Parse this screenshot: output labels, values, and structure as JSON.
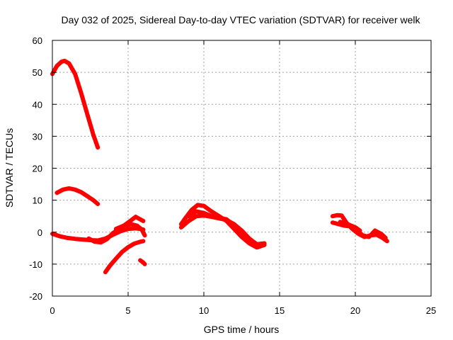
{
  "chart_data": {
    "type": "line",
    "title": "Day 032 of 2025, Sidereal Day-to-day VTEC variation (SDTVAR) for receiver welk",
    "xlabel": "GPS time / hours",
    "ylabel": "SDTVAR / TECUs",
    "xlim": [
      0,
      25
    ],
    "ylim": [
      -20,
      60
    ],
    "xticks": [
      0,
      5,
      10,
      15,
      20,
      25
    ],
    "yticks": [
      -20,
      -10,
      0,
      10,
      20,
      30,
      40,
      50,
      60
    ],
    "grid": true,
    "color": "#ff0000",
    "series": [
      {
        "name": "arc-high",
        "x": [
          0.0,
          0.3,
          0.6,
          0.8,
          1.1,
          1.5,
          1.9,
          2.3,
          2.7,
          3.0
        ],
        "y": [
          49.5,
          52.0,
          53.3,
          53.6,
          52.8,
          49.5,
          43.5,
          37.0,
          30.5,
          26.5
        ]
      },
      {
        "name": "arc-mid",
        "x": [
          0.3,
          0.7,
          1.1,
          1.5,
          1.9,
          2.3,
          2.7,
          3.0
        ],
        "y": [
          12.3,
          13.3,
          13.7,
          13.3,
          12.5,
          11.3,
          10.0,
          8.8
        ]
      },
      {
        "name": "arc-zero-a",
        "x": [
          0.0,
          0.5,
          1.0,
          1.5,
          2.0,
          2.5,
          3.0,
          3.5,
          4.0,
          4.5,
          5.0,
          5.5,
          6.0
        ],
        "y": [
          -0.5,
          -1.3,
          -1.8,
          -2.1,
          -2.3,
          -2.5,
          -2.6,
          -2.0,
          -0.8,
          0.3,
          1.0,
          1.2,
          0.8
        ]
      },
      {
        "name": "arc-zero-b",
        "x": [
          2.4,
          2.8,
          3.2,
          3.6,
          4.0,
          4.5,
          5.0,
          5.5,
          6.0
        ],
        "y": [
          -2.0,
          -3.0,
          -3.2,
          -2.2,
          -0.3,
          1.3,
          3.0,
          4.8,
          3.5
        ]
      },
      {
        "name": "arc-zero-c",
        "x": [
          4.2,
          4.7,
          5.2,
          5.6,
          5.9,
          6.1
        ],
        "y": [
          1.0,
          2.0,
          2.5,
          2.0,
          0.8,
          -1.0
        ]
      },
      {
        "name": "arc-low",
        "x": [
          3.5,
          3.8,
          4.2,
          4.6,
          5.0,
          5.4,
          5.8,
          6.0
        ],
        "y": [
          -12.5,
          -10.5,
          -8.3,
          -6.2,
          -4.7,
          -3.6,
          -3.0,
          -2.8
        ]
      },
      {
        "name": "arc-low-tail",
        "x": [
          5.8,
          6.0,
          6.1
        ],
        "y": [
          -8.8,
          -9.5,
          -10.0
        ]
      },
      {
        "name": "arc-noon-a",
        "x": [
          8.5,
          8.8,
          9.2,
          9.6,
          10.0,
          10.5,
          11.0,
          11.5,
          12.0,
          12.5,
          13.0,
          13.5,
          14.0
        ],
        "y": [
          2.5,
          4.5,
          7.0,
          8.5,
          8.2,
          6.5,
          5.0,
          3.5,
          1.0,
          -1.5,
          -3.5,
          -4.8,
          -4.0
        ]
      },
      {
        "name": "arc-noon-b",
        "x": [
          8.5,
          9.0,
          9.5,
          10.0,
          10.5,
          11.0,
          11.5,
          12.0,
          12.5,
          13.0,
          13.5,
          14.0
        ],
        "y": [
          1.5,
          3.5,
          5.0,
          5.2,
          4.8,
          4.3,
          3.8,
          2.5,
          0.5,
          -2.0,
          -3.8,
          -3.5
        ]
      },
      {
        "name": "arc-noon-c",
        "x": [
          9.0,
          9.5,
          10.0,
          10.5,
          11.0,
          11.5,
          12.0,
          12.5,
          13.0,
          13.5
        ],
        "y": [
          5.0,
          6.5,
          6.0,
          5.0,
          4.5,
          4.0,
          2.0,
          -0.5,
          -2.8,
          -4.5
        ]
      },
      {
        "name": "arc-late-a",
        "x": [
          18.5,
          18.8,
          19.1,
          19.4,
          19.8,
          20.2,
          20.6,
          21.0,
          21.4,
          21.8,
          22.1
        ],
        "y": [
          5.0,
          5.3,
          5.2,
          3.0,
          1.0,
          -0.5,
          -1.5,
          -1.0,
          -0.8,
          -1.8,
          -2.8
        ]
      },
      {
        "name": "arc-late-b",
        "x": [
          18.5,
          18.9,
          19.3,
          19.7,
          20.1,
          20.5,
          20.9,
          21.3,
          21.7,
          22.0
        ],
        "y": [
          3.0,
          2.5,
          2.0,
          1.8,
          0.5,
          -1.0,
          -1.5,
          0.5,
          -0.5,
          -1.8
        ]
      },
      {
        "name": "arc-late-c",
        "x": [
          19.0,
          19.5,
          20.0,
          20.3
        ],
        "y": [
          3.2,
          2.5,
          1.5,
          0.5
        ]
      }
    ]
  }
}
